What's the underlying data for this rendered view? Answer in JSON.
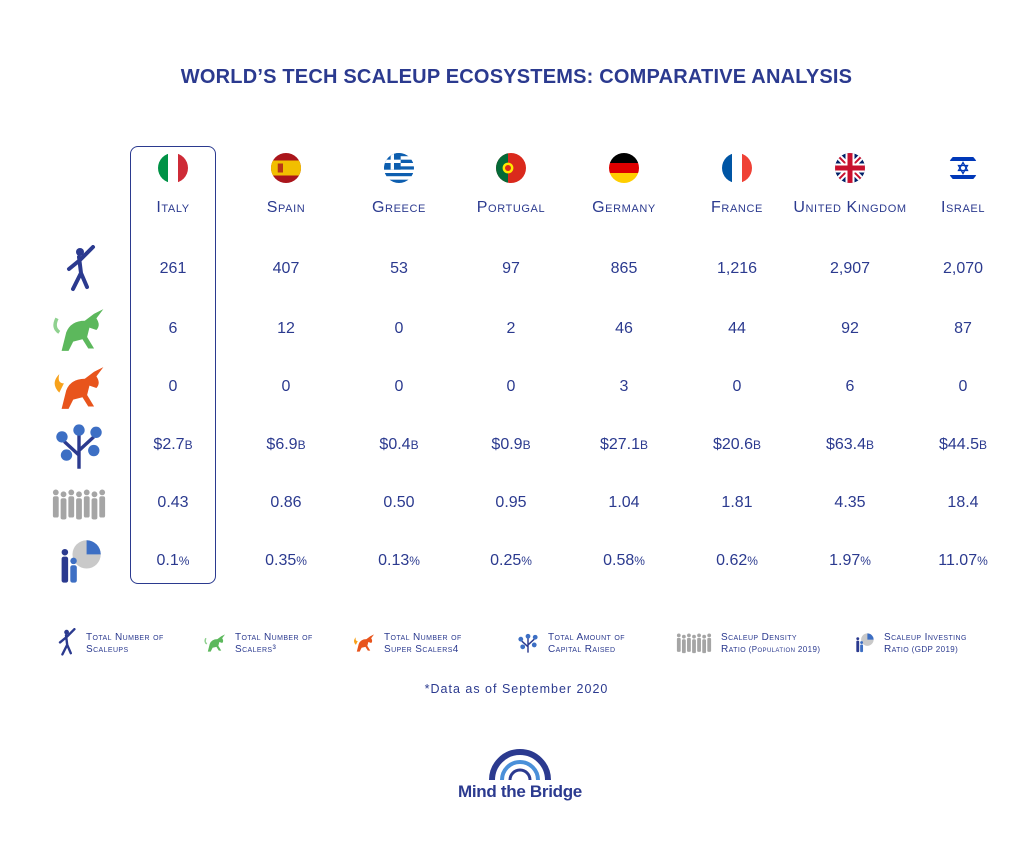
{
  "title": "WORLD’S TECH SCALEUP ECOSYSTEMS: COMPARATIVE ANALYSIS",
  "chart_data": {
    "type": "table",
    "highlight_country": "Italy",
    "countries": [
      "Italy",
      "Spain",
      "Greece",
      "Portugal",
      "Germany",
      "France",
      "United Kingdom",
      "Israel"
    ],
    "rows": [
      {
        "metric": "Total Number of Scaleups",
        "icon": "jumping-person-icon",
        "values": [
          261,
          407,
          53,
          97,
          865,
          1216,
          2907,
          2070
        ],
        "display": [
          "261",
          "407",
          "53",
          "97",
          "865",
          "1,216",
          "2,907",
          "2,070"
        ],
        "unit": ""
      },
      {
        "metric": "Total Number of Scalers",
        "icon": "green-unicorn-icon",
        "values": [
          6,
          12,
          0,
          2,
          46,
          44,
          92,
          87
        ],
        "display": [
          "6",
          "12",
          "0",
          "2",
          "46",
          "44",
          "92",
          "87"
        ],
        "unit": ""
      },
      {
        "metric": "Total Number of Super Scalers",
        "icon": "fire-unicorn-icon",
        "values": [
          0,
          0,
          0,
          0,
          3,
          0,
          6,
          0
        ],
        "display": [
          "0",
          "0",
          "0",
          "0",
          "3",
          "0",
          "6",
          "0"
        ],
        "unit": ""
      },
      {
        "metric": "Total Amount of Capital Raised",
        "icon": "money-tree-icon",
        "values": [
          2.7,
          6.9,
          0.4,
          0.9,
          27.1,
          20.6,
          63.4,
          44.5
        ],
        "display": [
          "$2.7",
          "$6.9",
          "$0.4",
          "$0.9",
          "$27.1",
          "$20.6",
          "$63.4",
          "$44.5"
        ],
        "unit": "B"
      },
      {
        "metric": "Scaleup Density Ratio",
        "icon": "people-group-icon",
        "values": [
          0.43,
          0.86,
          0.5,
          0.95,
          1.04,
          1.81,
          4.35,
          18.4
        ],
        "display": [
          "0.43",
          "0.86",
          "0.50",
          "0.95",
          "1.04",
          "1.81",
          "4.35",
          "18.4"
        ],
        "unit": ""
      },
      {
        "metric": "Scaleup Investing Ratio",
        "icon": "pie-chart-people-icon",
        "values": [
          0.1,
          0.35,
          0.13,
          0.25,
          0.58,
          0.62,
          1.97,
          11.07
        ],
        "display": [
          "0.1",
          "0.35",
          "0.13",
          "0.25",
          "0.58",
          "0.62",
          "1.97",
          "11.07"
        ],
        "unit": "%"
      }
    ]
  },
  "flags": [
    {
      "country": "Italy",
      "icon": "italy-flag-icon"
    },
    {
      "country": "Spain",
      "icon": "spain-flag-icon"
    },
    {
      "country": "Greece",
      "icon": "greece-flag-icon"
    },
    {
      "country": "Portugal",
      "icon": "portugal-flag-icon"
    },
    {
      "country": "Germany",
      "icon": "germany-flag-icon"
    },
    {
      "country": "France",
      "icon": "france-flag-icon"
    },
    {
      "country": "United Kingdom",
      "icon": "uk-flag-icon"
    },
    {
      "country": "Israel",
      "icon": "israel-flag-icon"
    }
  ],
  "legend": [
    {
      "line1": "Total Number of",
      "line2": "Scaleups",
      "icon": "jumping-person-icon"
    },
    {
      "line1": "Total Number of",
      "line2": "Scalers³",
      "icon": "green-unicorn-icon"
    },
    {
      "line1": "Total Number of",
      "line2": "Super Scalers4",
      "icon": "fire-unicorn-icon"
    },
    {
      "line1": "Total Amount of",
      "line2": "Capital Raised",
      "icon": "money-tree-icon"
    },
    {
      "line1": "Scaleup Density",
      "line2": "Ratio",
      "line2_small": "(Population 2019)",
      "icon": "people-group-icon"
    },
    {
      "line1": "Scaleup Investing",
      "line2": "Ratio",
      "line2_small": "(GDP 2019)",
      "icon": "pie-chart-people-icon"
    }
  ],
  "note": "*Data as of September 2020",
  "logo_text": "Mind the Bridge",
  "colors": {
    "primary": "#2b3a8f",
    "green": "#5cb85c",
    "fire": "#e8541c",
    "grey": "#9a9a9a"
  }
}
